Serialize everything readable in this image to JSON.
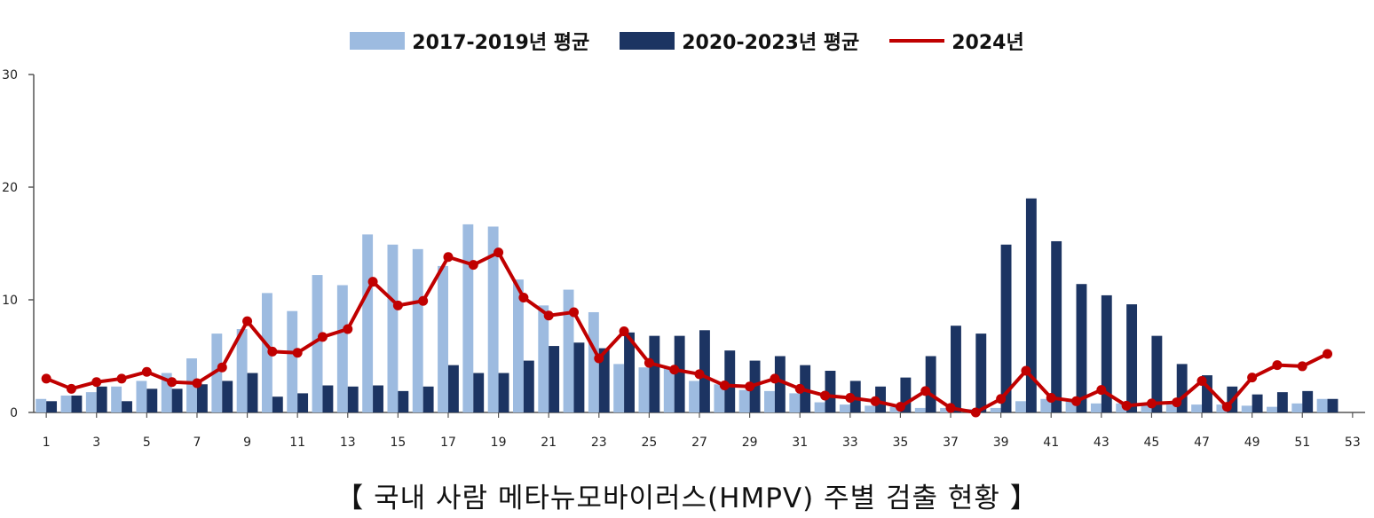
{
  "legend": {
    "series1": "2017-2019년 평균",
    "series2": "2020-2023년 평균",
    "series3": "2024년"
  },
  "caption": "【 국내 사람 메타뉴모바이러스(HMPV) 주별 검출 현황 】",
  "colors": {
    "series1": "#9dbbe0",
    "series2": "#1c3462",
    "series3": "#c00000",
    "axis": "#555555"
  },
  "chart_data": {
    "type": "bar",
    "x": [
      1,
      2,
      3,
      4,
      5,
      6,
      7,
      8,
      9,
      10,
      11,
      12,
      13,
      14,
      15,
      16,
      17,
      18,
      19,
      20,
      21,
      22,
      23,
      24,
      25,
      26,
      27,
      28,
      29,
      30,
      31,
      32,
      33,
      34,
      35,
      36,
      37,
      38,
      39,
      40,
      41,
      42,
      43,
      44,
      45,
      46,
      47,
      48,
      49,
      50,
      51,
      52
    ],
    "xticks": [
      "1",
      "3",
      "5",
      "7",
      "9",
      "11",
      "13",
      "15",
      "17",
      "19",
      "21",
      "23",
      "25",
      "27",
      "29",
      "31",
      "33",
      "35",
      "37",
      "39",
      "41",
      "43",
      "45",
      "47",
      "49",
      "51",
      "53"
    ],
    "xlim": [
      1,
      53
    ],
    "ylim": [
      0,
      30
    ],
    "yticks": [
      "0",
      "10",
      "20",
      "30"
    ],
    "series": [
      {
        "name": "2017-2019년 평균",
        "type": "bar",
        "values": [
          1.2,
          1.5,
          1.8,
          2.3,
          2.8,
          3.5,
          4.8,
          7.0,
          7.4,
          10.6,
          9.0,
          12.2,
          11.3,
          15.8,
          14.9,
          14.5,
          13.0,
          16.7,
          16.5,
          11.8,
          9.5,
          10.9,
          8.9,
          4.3,
          4.0,
          4.0,
          2.8,
          2.5,
          2.0,
          1.9,
          1.7,
          0.9,
          0.7,
          0.6,
          0.5,
          0.4,
          0.4,
          0.3,
          0.4,
          1.0,
          1.2,
          1.0,
          0.8,
          0.8,
          0.7,
          0.7,
          0.7,
          0.7,
          0.6,
          0.5,
          0.8,
          1.2
        ]
      },
      {
        "name": "2020-2023년 평균",
        "type": "bar",
        "values": [
          1.0,
          1.5,
          2.3,
          1.0,
          2.1,
          2.1,
          2.5,
          2.8,
          3.5,
          1.4,
          1.7,
          2.4,
          2.3,
          2.4,
          1.9,
          2.3,
          4.2,
          3.5,
          3.5,
          4.6,
          5.9,
          6.2,
          5.7,
          7.1,
          6.8,
          6.8,
          7.3,
          5.5,
          4.6,
          5.0,
          4.2,
          3.7,
          2.8,
          2.3,
          3.1,
          5.0,
          7.7,
          7.0,
          14.9,
          19.0,
          15.2,
          11.4,
          10.4,
          9.6,
          6.8,
          4.3,
          3.3,
          2.3,
          1.6,
          1.8,
          1.9,
          1.2
        ]
      },
      {
        "name": "2024년",
        "type": "line",
        "values": [
          3.0,
          2.1,
          2.7,
          3.0,
          3.6,
          2.7,
          2.6,
          4.0,
          8.1,
          5.4,
          5.3,
          6.7,
          7.4,
          11.6,
          9.5,
          9.9,
          13.8,
          13.1,
          14.2,
          10.2,
          8.6,
          8.9,
          4.8,
          7.2,
          4.4,
          3.8,
          3.4,
          2.4,
          2.3,
          3.0,
          2.1,
          1.5,
          1.3,
          1.0,
          0.5,
          1.9,
          0.4,
          0.0,
          1.2,
          3.7,
          1.3,
          1.0,
          2.0,
          0.6,
          0.8,
          0.9,
          2.8,
          0.5,
          3.1,
          4.2,
          4.1,
          5.2
        ]
      }
    ]
  }
}
